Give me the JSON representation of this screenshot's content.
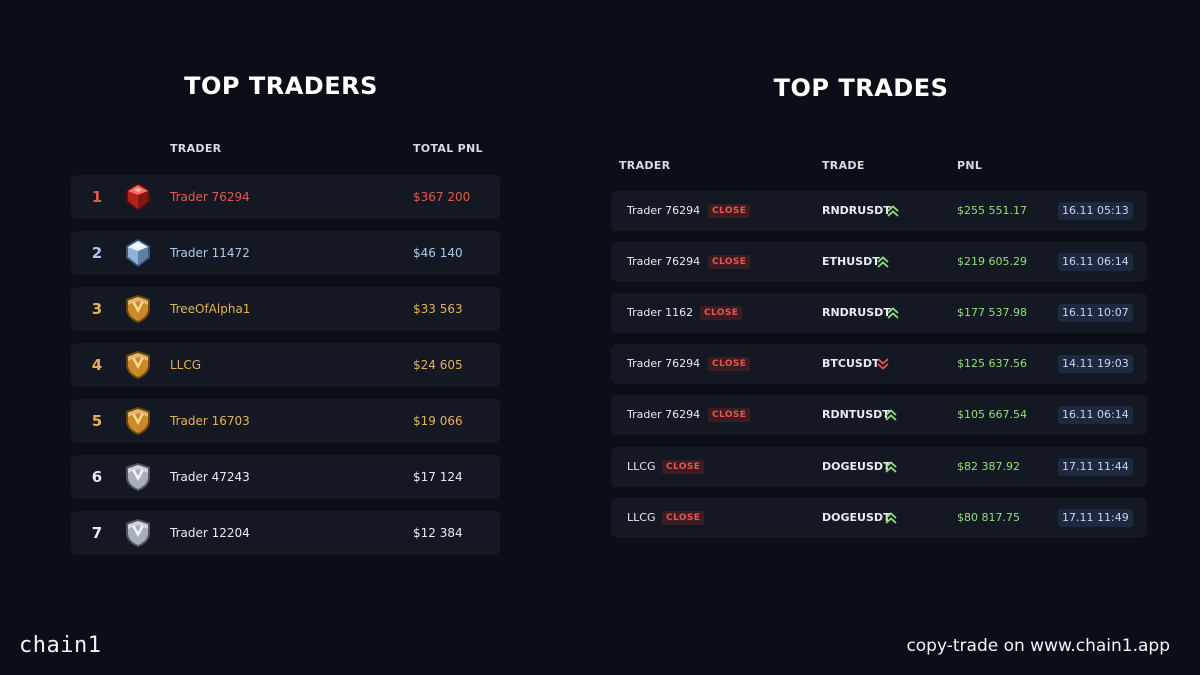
{
  "top_traders": {
    "title": "TOP TRADERS",
    "col_trader": "TRADER",
    "col_pnl": "TOTAL PNL",
    "rows": [
      {
        "rank": "1",
        "name": "Trader 76294",
        "pnl": "$367 200",
        "tier": "ruby",
        "color": "#e5584e"
      },
      {
        "rank": "2",
        "name": "Trader 11472",
        "pnl": "$46 140",
        "tier": "diamond",
        "color": "#a9c9f0"
      },
      {
        "rank": "3",
        "name": "TreeOfAlpha1",
        "pnl": "$33 563",
        "tier": "gold",
        "color": "#e8b055"
      },
      {
        "rank": "4",
        "name": "LLCG",
        "pnl": "$24 605",
        "tier": "gold",
        "color": "#e8b055"
      },
      {
        "rank": "5",
        "name": "Trader 16703",
        "pnl": "$19 066",
        "tier": "gold",
        "color": "#e8b055"
      },
      {
        "rank": "6",
        "name": "Trader 47243",
        "pnl": "$17 124",
        "tier": "silver",
        "color": "#e8eaf0"
      },
      {
        "rank": "7",
        "name": "Trader 12204",
        "pnl": "$12 384",
        "tier": "silver",
        "color": "#e8eaf0"
      }
    ]
  },
  "top_trades": {
    "title": "TOP TRADES",
    "col_trader": "TRADER",
    "col_trade": "TRADE",
    "col_pnl": "PNL",
    "rows": [
      {
        "trader": "Trader 76294",
        "tag": "CLOSE",
        "pair": "RNDRUSDT",
        "direction": "long",
        "pnl": "$255 551.17",
        "time": "16.11 05:13"
      },
      {
        "trader": "Trader 76294",
        "tag": "CLOSE",
        "pair": "ETHUSDT",
        "direction": "long",
        "pnl": "$219 605.29",
        "time": "16.11 06:14"
      },
      {
        "trader": "Trader 1162",
        "tag": "CLOSE",
        "pair": "RNDRUSDT",
        "direction": "long",
        "pnl": "$177 537.98",
        "time": "16.11 10:07"
      },
      {
        "trader": "Trader 76294",
        "tag": "CLOSE",
        "pair": "BTCUSDT",
        "direction": "short",
        "pnl": "$125 637.56",
        "time": "14.11 19:03"
      },
      {
        "trader": "Trader 76294",
        "tag": "CLOSE",
        "pair": "RDNTUSDT",
        "direction": "long",
        "pnl": "$105 667.54",
        "time": "16.11 06:14"
      },
      {
        "trader": "LLCG",
        "tag": "CLOSE",
        "pair": "DOGEUSDT",
        "direction": "long",
        "pnl": "$82 387.92",
        "time": "17.11 11:44"
      },
      {
        "trader": "LLCG",
        "tag": "CLOSE",
        "pair": "DOGEUSDT",
        "direction": "long",
        "pnl": "$80 817.75",
        "time": "17.11 11:49"
      }
    ]
  },
  "footer": {
    "brand": "chain1",
    "cta": "copy-trade on www.chain1.app"
  },
  "colors": {
    "background": "#0b0e16",
    "row_background": "#141822",
    "profit_green": "#8ee07a",
    "close_red": "#e4574f",
    "long_arrow": "#8ee07a",
    "short_arrow": "#e4574f"
  }
}
